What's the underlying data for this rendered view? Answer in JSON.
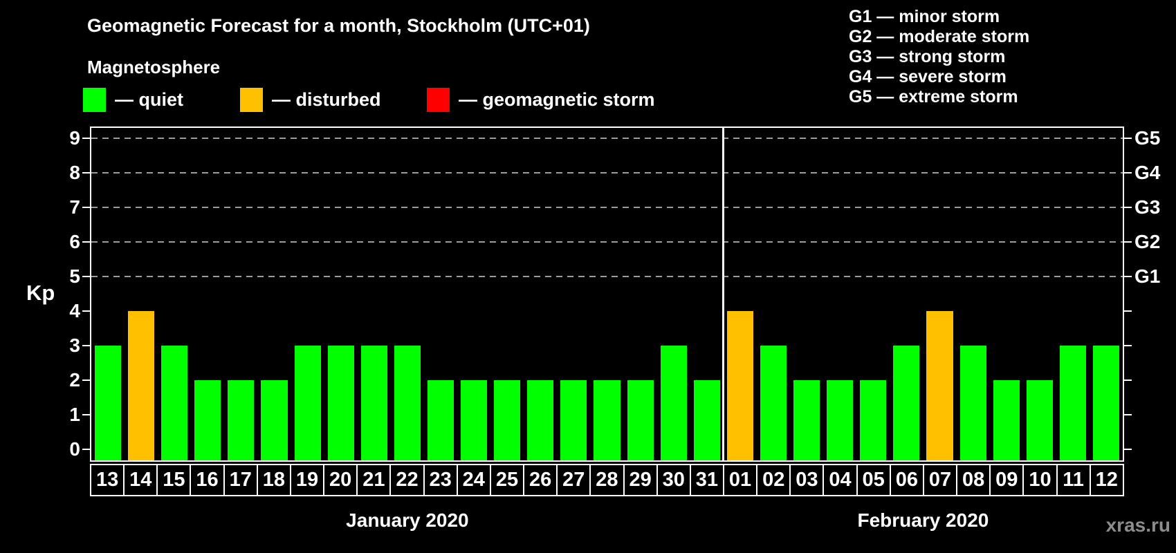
{
  "title": "Geomagnetic Forecast for a month, Stockholm (UTC+01)",
  "legend": {
    "title": "Magnetosphere",
    "items": [
      {
        "label": "— quiet",
        "level": "quiet"
      },
      {
        "label": "— disturbed",
        "level": "disturbed"
      },
      {
        "label": "— geomagnetic storm",
        "level": "storm"
      }
    ]
  },
  "g_legend": {
    "items": [
      "G1 — minor storm",
      "G2 — moderate storm",
      "G3 — strong storm",
      "G4 — severe storm",
      "G5 — extreme storm"
    ]
  },
  "watermark": "xras.ru",
  "colors": {
    "quiet": "#00ff00",
    "disturbed": "#ffc000",
    "storm": "#ff0000",
    "grid": "#9c9c9c",
    "axis": "#ffffff",
    "watermark": "#8c8c8c",
    "background": "#000000"
  },
  "chart_data": {
    "type": "bar",
    "title": "Geomagnetic Forecast for a month, Stockholm (UTC+01)",
    "ylabel": "Kp",
    "ylim": [
      -0.32,
      9.68
    ],
    "yticks": [
      0,
      1,
      2,
      3,
      4,
      5,
      6,
      7,
      8,
      9
    ],
    "gridlines_at": [
      5,
      6,
      7,
      8,
      9
    ],
    "grid": "dashed-top-half",
    "legend_position": "top",
    "right_axis_labels": {
      "5": "G1",
      "6": "G2",
      "7": "G3",
      "8": "G4",
      "9": "G5"
    },
    "months": [
      {
        "label": "January 2020",
        "days": [
          "13",
          "14",
          "15",
          "16",
          "17",
          "18",
          "19",
          "20",
          "21",
          "22",
          "23",
          "24",
          "25",
          "26",
          "27",
          "28",
          "29",
          "30",
          "31"
        ],
        "values": [
          3,
          4,
          3,
          2,
          2,
          2,
          3,
          3,
          3,
          3,
          2,
          2,
          2,
          2,
          2,
          2,
          2,
          3,
          2
        ],
        "levels": [
          "quiet",
          "disturbed",
          "quiet",
          "quiet",
          "quiet",
          "quiet",
          "quiet",
          "quiet",
          "quiet",
          "quiet",
          "quiet",
          "quiet",
          "quiet",
          "quiet",
          "quiet",
          "quiet",
          "quiet",
          "quiet",
          "quiet"
        ]
      },
      {
        "label": "February 2020",
        "days": [
          "01",
          "02",
          "03",
          "04",
          "05",
          "06",
          "07",
          "08",
          "09",
          "10",
          "11",
          "12"
        ],
        "values": [
          4,
          3,
          2,
          2,
          2,
          3,
          4,
          3,
          2,
          2,
          3,
          3
        ],
        "levels": [
          "disturbed",
          "quiet",
          "quiet",
          "quiet",
          "quiet",
          "quiet",
          "disturbed",
          "quiet",
          "quiet",
          "quiet",
          "quiet",
          "quiet"
        ]
      }
    ]
  }
}
